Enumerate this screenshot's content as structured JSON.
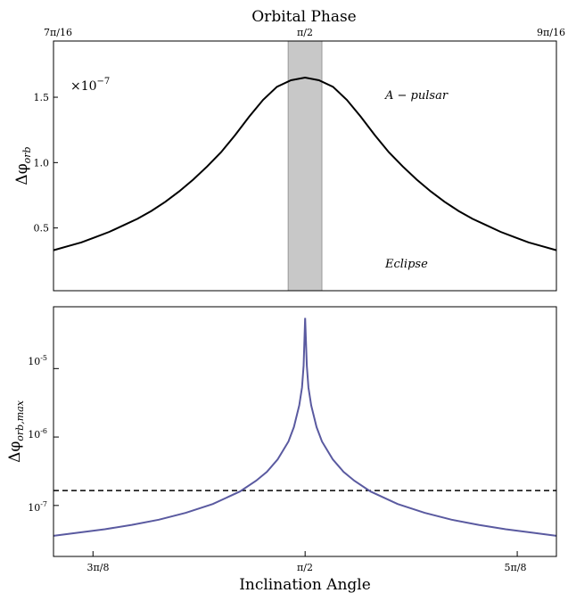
{
  "chart_data": [
    {
      "type": "line",
      "panel": "top",
      "title": "Orbital Phase",
      "ylabel": "Δφ_orb",
      "offset_label": "×10^-7",
      "x_ticks": [
        "7π/16",
        "π/2",
        "9π/16"
      ],
      "xlim": [
        1.3744,
        1.7671
      ],
      "y_ticks": [
        "0.5",
        "1.0",
        "1.5"
      ],
      "ylim": [
        0.02,
        1.93
      ],
      "grid": false,
      "annotations": [
        "A − pulsar",
        "Eclipse"
      ],
      "eclipse_band": [
        1.5576,
        1.584
      ],
      "series": [
        {
          "color": "#000000",
          "x": [
            1.3744,
            1.3853,
            1.3962,
            1.4071,
            1.418,
            1.429,
            1.4399,
            1.4508,
            1.4617,
            1.4726,
            1.4835,
            1.4944,
            1.5053,
            1.5162,
            1.5271,
            1.538,
            1.5489,
            1.5598,
            1.5708,
            1.5817,
            1.5926,
            1.6035,
            1.6144,
            1.6253,
            1.6362,
            1.6471,
            1.658,
            1.6689,
            1.6798,
            1.6907,
            1.7016,
            1.7126,
            1.7235,
            1.7344,
            1.7453,
            1.7562,
            1.7671
          ],
          "y": [
            0.33,
            0.36,
            0.39,
            0.43,
            0.47,
            0.52,
            0.57,
            0.63,
            0.7,
            0.78,
            0.87,
            0.97,
            1.08,
            1.21,
            1.35,
            1.48,
            1.58,
            1.63,
            1.65,
            1.63,
            1.58,
            1.48,
            1.35,
            1.21,
            1.08,
            0.97,
            0.87,
            0.78,
            0.7,
            0.63,
            0.57,
            0.52,
            0.47,
            0.43,
            0.39,
            0.36,
            0.33
          ]
        }
      ]
    },
    {
      "type": "line",
      "panel": "bottom",
      "xlabel": "Inclination Angle",
      "ylabel": "Δφ_orb,max",
      "yscale": "log",
      "x_ticks": [
        "3π/8",
        "π/2",
        "5π/8"
      ],
      "xlim": [
        1.105,
        2.036
      ],
      "y_ticks": [
        "10^-5",
        "10^-6",
        "10^-7"
      ],
      "ylim": [
        1.8e-08,
        8e-05
      ],
      "grid": false,
      "threshold": 1.65e-07,
      "series": [
        {
          "color": "#5a5aa0",
          "x": [
            1.105,
            1.15,
            1.2,
            1.25,
            1.3,
            1.35,
            1.4,
            1.45,
            1.48,
            1.5,
            1.52,
            1.54,
            1.55,
            1.56,
            1.565,
            1.568,
            1.5708,
            1.574,
            1.577,
            1.582,
            1.592,
            1.602,
            1.622,
            1.642,
            1.662,
            1.692,
            1.742,
            1.792,
            1.842,
            1.892,
            1.942,
            1.992,
            2.036
          ],
          "y": [
            3.6e-08,
            4e-08,
            4.5e-08,
            5.2e-08,
            6.2e-08,
            7.8e-08,
            1.05e-07,
            1.6e-07,
            2.3e-07,
            3.1e-07,
            4.7e-07,
            8.6e-07,
            1.4e-06,
            2.9e-06,
            5.3e-06,
            1.1e-05,
            5.5e-05,
            1.1e-05,
            5.3e-06,
            2.9e-06,
            1.4e-06,
            8.6e-07,
            4.7e-07,
            3.1e-07,
            2.3e-07,
            1.6e-07,
            1.05e-07,
            7.8e-08,
            6.2e-08,
            5.2e-08,
            4.5e-08,
            4e-08,
            3.6e-08
          ]
        }
      ]
    }
  ]
}
